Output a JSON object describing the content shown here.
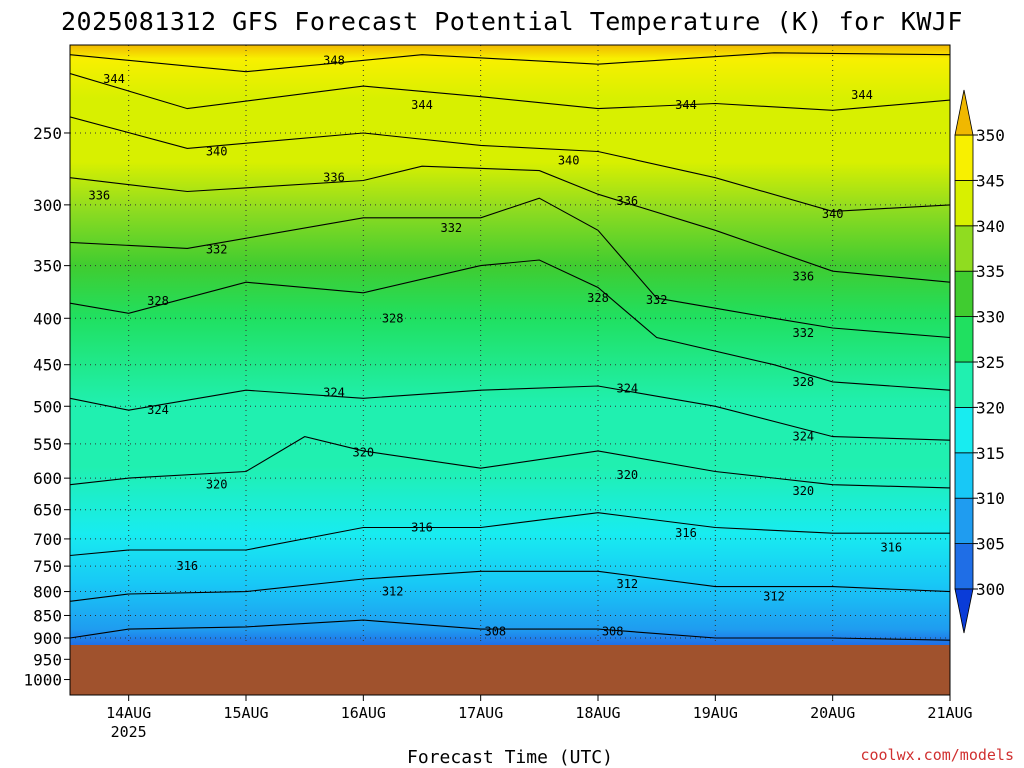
{
  "chart_data": {
    "type": "heatmap",
    "title": "2025081312 GFS Forecast Potential Temperature (K) for KWJF",
    "xlabel": "Forecast Time (UTC)",
    "ylabel": "",
    "y_scale": "log-pressure",
    "y_reversed": true,
    "ylim": [
      1040,
      200
    ],
    "xlim": [
      "2025-08-13T12",
      "2025-08-21T00"
    ],
    "yticks": [
      250,
      300,
      350,
      400,
      450,
      500,
      550,
      600,
      650,
      700,
      750,
      800,
      850,
      900,
      950,
      1000
    ],
    "xticks": [
      {
        "x": "2025-08-14T00",
        "label": "14AUG",
        "sublabel": "2025"
      },
      {
        "x": "2025-08-15T00",
        "label": "15AUG",
        "sublabel": ""
      },
      {
        "x": "2025-08-16T00",
        "label": "16AUG",
        "sublabel": ""
      },
      {
        "x": "2025-08-17T00",
        "label": "17AUG",
        "sublabel": ""
      },
      {
        "x": "2025-08-18T00",
        "label": "18AUG",
        "sublabel": ""
      },
      {
        "x": "2025-08-19T00",
        "label": "19AUG",
        "sublabel": ""
      },
      {
        "x": "2025-08-20T00",
        "label": "20AUG",
        "sublabel": ""
      },
      {
        "x": "2025-08-21T00",
        "label": "21AUG",
        "sublabel": ""
      }
    ],
    "grid": true,
    "ground_level_hpa": 922,
    "colorbar": {
      "levels": [
        300,
        305,
        310,
        315,
        320,
        325,
        330,
        335,
        340,
        345,
        350
      ],
      "colors": [
        "#0a3cd8",
        "#1f6ee6",
        "#1f9cf0",
        "#18c8f6",
        "#18ecf0",
        "#20f0b0",
        "#20e060",
        "#40cc30",
        "#90dc20",
        "#d8f000",
        "#f8f000",
        "#f0b800"
      ],
      "extend": "both",
      "placement": "right"
    },
    "series": [
      {
        "value": 348,
        "points": [
          [
            "2025-08-13T12",
            205
          ],
          [
            "2025-08-15T00",
            214
          ],
          [
            "2025-08-16T12",
            205
          ],
          [
            "2025-08-18T00",
            210
          ],
          [
            "2025-08-19T12",
            204
          ],
          [
            "2025-08-21T00",
            205
          ]
        ]
      },
      {
        "value": 344,
        "points": [
          [
            "2025-08-13T12",
            215
          ],
          [
            "2025-08-14T12",
            235
          ],
          [
            "2025-08-16T00",
            222
          ],
          [
            "2025-08-17T00",
            228
          ],
          [
            "2025-08-18T00",
            235
          ],
          [
            "2025-08-19T00",
            232
          ],
          [
            "2025-08-20T00",
            236
          ],
          [
            "2025-08-21T00",
            230
          ]
        ]
      },
      {
        "value": 340,
        "points": [
          [
            "2025-08-13T12",
            240
          ],
          [
            "2025-08-14T12",
            260
          ],
          [
            "2025-08-16T00",
            250
          ],
          [
            "2025-08-17T00",
            258
          ],
          [
            "2025-08-18T00",
            262
          ],
          [
            "2025-08-19T00",
            280
          ],
          [
            "2025-08-20T00",
            305
          ],
          [
            "2025-08-21T00",
            300
          ]
        ]
      },
      {
        "value": 336,
        "points": [
          [
            "2025-08-13T12",
            280
          ],
          [
            "2025-08-14T12",
            290
          ],
          [
            "2025-08-16T00",
            282
          ],
          [
            "2025-08-16T12",
            272
          ],
          [
            "2025-08-17T12",
            275
          ],
          [
            "2025-08-18T00",
            292
          ],
          [
            "2025-08-19T00",
            320
          ],
          [
            "2025-08-20T00",
            355
          ],
          [
            "2025-08-21T00",
            365
          ]
        ]
      },
      {
        "value": 332,
        "points": [
          [
            "2025-08-13T12",
            330
          ],
          [
            "2025-08-14T12",
            335
          ],
          [
            "2025-08-16T00",
            310
          ],
          [
            "2025-08-17T00",
            310
          ],
          [
            "2025-08-17T12",
            295
          ],
          [
            "2025-08-18T00",
            320
          ],
          [
            "2025-08-18T12",
            380
          ],
          [
            "2025-08-19T12",
            400
          ],
          [
            "2025-08-20T00",
            410
          ],
          [
            "2025-08-21T00",
            420
          ]
        ]
      },
      {
        "value": 328,
        "points": [
          [
            "2025-08-13T12",
            385
          ],
          [
            "2025-08-14T00",
            395
          ],
          [
            "2025-08-15T00",
            365
          ],
          [
            "2025-08-16T00",
            375
          ],
          [
            "2025-08-17T00",
            350
          ],
          [
            "2025-08-17T12",
            345
          ],
          [
            "2025-08-18T00",
            370
          ],
          [
            "2025-08-18T12",
            420
          ],
          [
            "2025-08-19T12",
            450
          ],
          [
            "2025-08-20T00",
            470
          ],
          [
            "2025-08-21T00",
            480
          ]
        ]
      },
      {
        "value": 324,
        "points": [
          [
            "2025-08-13T12",
            490
          ],
          [
            "2025-08-14T00",
            505
          ],
          [
            "2025-08-15T00",
            480
          ],
          [
            "2025-08-16T00",
            490
          ],
          [
            "2025-08-17T00",
            480
          ],
          [
            "2025-08-18T00",
            475
          ],
          [
            "2025-08-19T00",
            500
          ],
          [
            "2025-08-20T00",
            540
          ],
          [
            "2025-08-21T00",
            545
          ]
        ]
      },
      {
        "value": 320,
        "points": [
          [
            "2025-08-13T12",
            610
          ],
          [
            "2025-08-14T00",
            600
          ],
          [
            "2025-08-15T00",
            590
          ],
          [
            "2025-08-15T12",
            540
          ],
          [
            "2025-08-16T00",
            560
          ],
          [
            "2025-08-17T00",
            585
          ],
          [
            "2025-08-18T00",
            560
          ],
          [
            "2025-08-19T00",
            590
          ],
          [
            "2025-08-20T00",
            610
          ],
          [
            "2025-08-21T00",
            615
          ]
        ]
      },
      {
        "value": 316,
        "points": [
          [
            "2025-08-13T12",
            730
          ],
          [
            "2025-08-14T00",
            720
          ],
          [
            "2025-08-15T00",
            720
          ],
          [
            "2025-08-16T00",
            680
          ],
          [
            "2025-08-17T00",
            680
          ],
          [
            "2025-08-18T00",
            655
          ],
          [
            "2025-08-19T00",
            680
          ],
          [
            "2025-08-20T00",
            690
          ],
          [
            "2025-08-21T00",
            690
          ]
        ]
      },
      {
        "value": 312,
        "points": [
          [
            "2025-08-13T12",
            820
          ],
          [
            "2025-08-14T00",
            805
          ],
          [
            "2025-08-15T00",
            800
          ],
          [
            "2025-08-16T00",
            775
          ],
          [
            "2025-08-17T00",
            760
          ],
          [
            "2025-08-18T00",
            760
          ],
          [
            "2025-08-19T00",
            790
          ],
          [
            "2025-08-20T00",
            790
          ],
          [
            "2025-08-21T00",
            800
          ]
        ]
      },
      {
        "value": 308,
        "points": [
          [
            "2025-08-13T12",
            900
          ],
          [
            "2025-08-14T00",
            880
          ],
          [
            "2025-08-15T00",
            875
          ],
          [
            "2025-08-16T00",
            860
          ],
          [
            "2025-08-17T00",
            880
          ],
          [
            "2025-08-18T00",
            880
          ],
          [
            "2025-08-19T00",
            900
          ],
          [
            "2025-08-20T00",
            900
          ],
          [
            "2025-08-21T00",
            905
          ]
        ]
      }
    ],
    "labels": [
      {
        "text": "348",
        "x": "2025-08-15T18",
        "y": 208
      },
      {
        "text": "344",
        "x": "2025-08-13T21",
        "y": 218
      },
      {
        "text": "344",
        "x": "2025-08-16T12",
        "y": 233
      },
      {
        "text": "344",
        "x": "2025-08-18T18",
        "y": 233
      },
      {
        "text": "344",
        "x": "2025-08-20T06",
        "y": 227
      },
      {
        "text": "340",
        "x": "2025-08-14T18",
        "y": 262
      },
      {
        "text": "340",
        "x": "2025-08-17T18",
        "y": 268
      },
      {
        "text": "340",
        "x": "2025-08-20T00",
        "y": 307
      },
      {
        "text": "336",
        "x": "2025-08-13T18",
        "y": 293
      },
      {
        "text": "336",
        "x": "2025-08-15T18",
        "y": 280
      },
      {
        "text": "336",
        "x": "2025-08-18T06",
        "y": 297
      },
      {
        "text": "336",
        "x": "2025-08-19T18",
        "y": 360
      },
      {
        "text": "332",
        "x": "2025-08-14T18",
        "y": 336
      },
      {
        "text": "332",
        "x": "2025-08-16T18",
        "y": 318
      },
      {
        "text": "332",
        "x": "2025-08-18T12",
        "y": 382
      },
      {
        "text": "332",
        "x": "2025-08-19T18",
        "y": 415
      },
      {
        "text": "328",
        "x": "2025-08-14T06",
        "y": 383
      },
      {
        "text": "328",
        "x": "2025-08-16T06",
        "y": 400
      },
      {
        "text": "328",
        "x": "2025-08-18T00",
        "y": 380
      },
      {
        "text": "328",
        "x": "2025-08-19T18",
        "y": 470
      },
      {
        "text": "324",
        "x": "2025-08-14T06",
        "y": 505
      },
      {
        "text": "324",
        "x": "2025-08-15T18",
        "y": 483
      },
      {
        "text": "324",
        "x": "2025-08-18T06",
        "y": 478
      },
      {
        "text": "324",
        "x": "2025-08-19T18",
        "y": 540
      },
      {
        "text": "320",
        "x": "2025-08-14T18",
        "y": 610
      },
      {
        "text": "320",
        "x": "2025-08-16T00",
        "y": 562
      },
      {
        "text": "320",
        "x": "2025-08-18T06",
        "y": 595
      },
      {
        "text": "320",
        "x": "2025-08-19T18",
        "y": 620
      },
      {
        "text": "316",
        "x": "2025-08-14T12",
        "y": 750
      },
      {
        "text": "316",
        "x": "2025-08-16T12",
        "y": 680
      },
      {
        "text": "316",
        "x": "2025-08-18T18",
        "y": 690
      },
      {
        "text": "316",
        "x": "2025-08-20T12",
        "y": 715
      },
      {
        "text": "312",
        "x": "2025-08-16T06",
        "y": 800
      },
      {
        "text": "312",
        "x": "2025-08-18T06",
        "y": 785
      },
      {
        "text": "312",
        "x": "2025-08-19T12",
        "y": 810
      },
      {
        "text": "308",
        "x": "2025-08-17T03",
        "y": 885
      },
      {
        "text": "308",
        "x": "2025-08-18T03",
        "y": 885
      }
    ]
  },
  "footer": {
    "credit": "coolwx.com/models"
  }
}
